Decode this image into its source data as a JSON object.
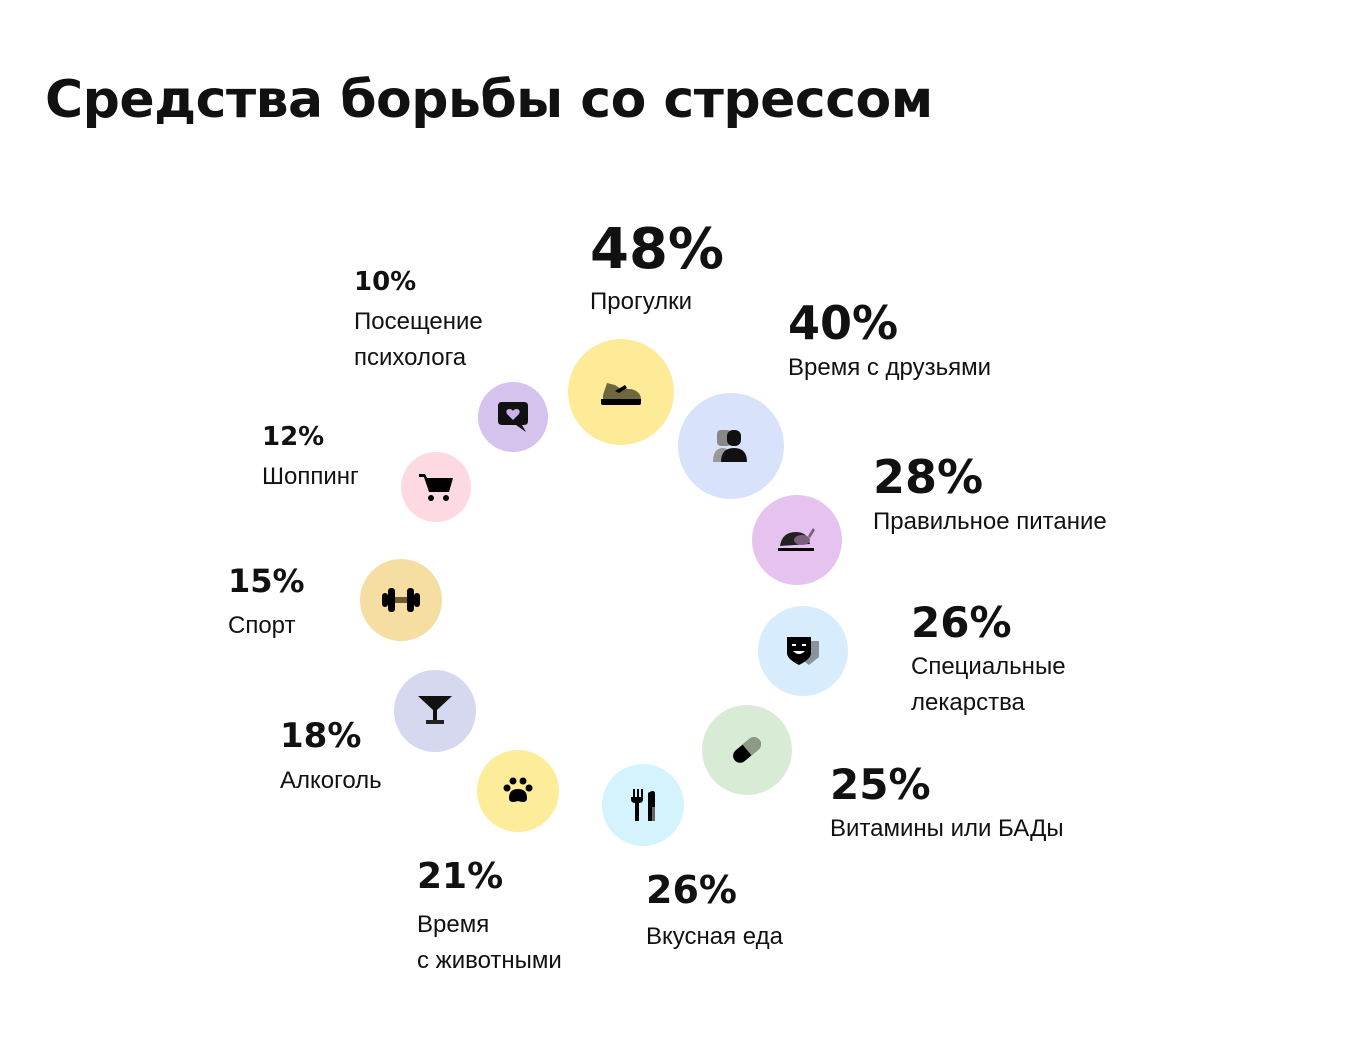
{
  "title": "Средства борьбы со стрессом",
  "chart_data": {
    "type": "bubble",
    "title": "Средства борьбы со стрессом",
    "unit": "%",
    "items": [
      {
        "label": "Прогулки",
        "value": 48,
        "display": "48%",
        "icon": "sneaker-icon",
        "color": "#fdeb97"
      },
      {
        "label": "Время с друзьями",
        "value": 40,
        "display": "40%",
        "icon": "people-icon",
        "color": "#d9e2fb"
      },
      {
        "label": "Правильное питание",
        "value": 28,
        "display": "28%",
        "icon": "roast-chicken-icon",
        "color": "#e6c3ef"
      },
      {
        "label": "Специальные\nлекарства",
        "value": 26,
        "display": "26%",
        "icon": "theater-masks-icon",
        "color": "#d7ecfd"
      },
      {
        "label": "Витамины или БАДы",
        "value": 25,
        "display": "25%",
        "icon": "pill-icon",
        "color": "#d7ebd5"
      },
      {
        "label": "Вкусная еда",
        "value": 26,
        "display": "26%",
        "icon": "fork-knife-icon",
        "color": "#d5f3fd"
      },
      {
        "label": "Время\nс животными",
        "value": 21,
        "display": "21%",
        "icon": "paw-icon",
        "color": "#fdec99"
      },
      {
        "label": "Алкоголь",
        "value": 18,
        "display": "18%",
        "icon": "cocktail-glass-icon",
        "color": "#d5d8ee"
      },
      {
        "label": "Спорт",
        "value": 15,
        "display": "15%",
        "icon": "dumbbell-icon",
        "color": "#f4dea2"
      },
      {
        "label": "Шоппинг",
        "value": 12,
        "display": "12%",
        "icon": "shopping-cart-icon",
        "color": "#fdd9e2"
      },
      {
        "label": "Посещение\nпсихолога",
        "value": 10,
        "display": "10%",
        "icon": "heart-chat-icon",
        "color": "#d5c3ee"
      }
    ]
  }
}
